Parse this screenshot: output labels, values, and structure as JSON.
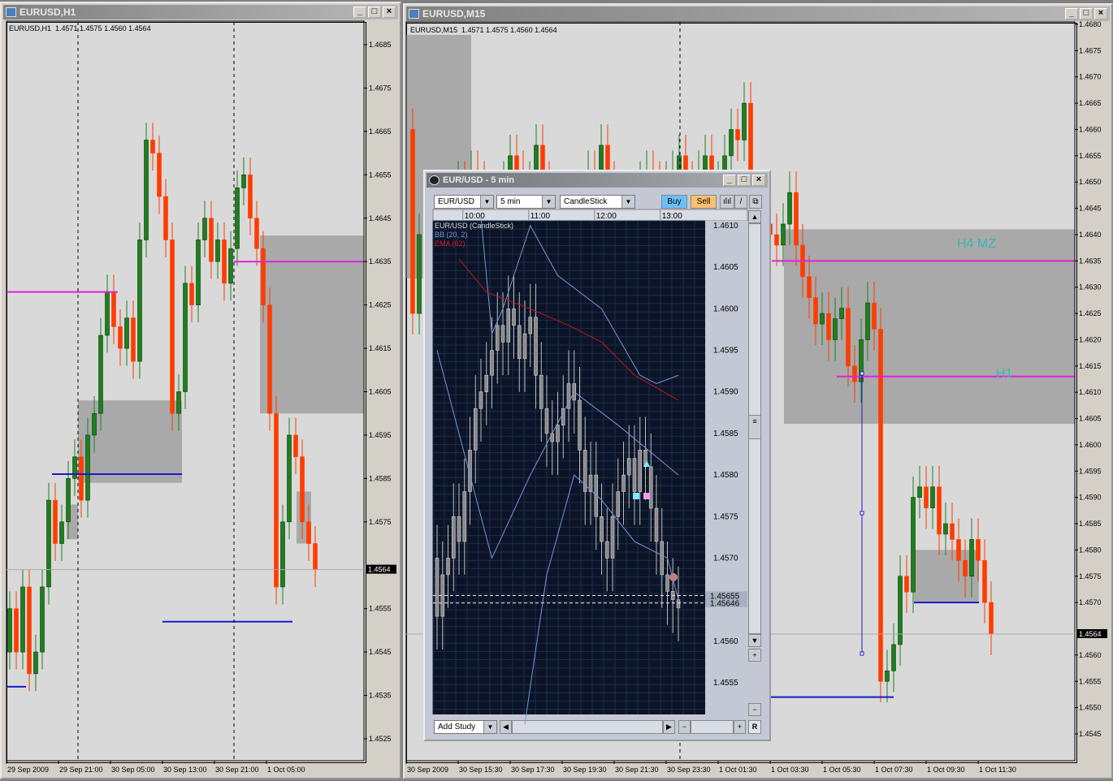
{
  "colors": {
    "bull": "#1e7f1e",
    "bear": "#ff3c00",
    "zone": "#a9a9a9",
    "magenta": "#e020e0",
    "blue": "#1a1acd",
    "label": "#3cb4b4",
    "mini_bg": "#0b1426",
    "mini_grid": "#1f2c48",
    "mini_candle": "#8a8a8a",
    "bb": "#7a96d8",
    "ema": "#c01818"
  },
  "h1": {
    "title": "EURUSD,H1",
    "header": "EURUSD,H1  1.4571 1.4575 1.4560 1.4564",
    "current_price": "1.4564",
    "window_buttons": [
      "_",
      "□",
      "×"
    ]
  },
  "m15": {
    "title": "EURUSD,M15",
    "header": "EURUSD,M15  1.4571 1.4575 1.4560 1.4564",
    "current_price": "1.4564",
    "labels": {
      "h4mz": "H4 MZ",
      "h1": "H1"
    }
  },
  "mini": {
    "title": "EUR/USD - 5 min",
    "symbol": "EUR/USD",
    "period": "5 min",
    "chart_type": "CandleStick",
    "buy": "Buy",
    "sell": "Sell",
    "legend": {
      "main": "EUR/USD (CandleStick)",
      "bb": "BB (20, 2)",
      "ema": "EMA (62)"
    },
    "price_markers": [
      "1.45655",
      "1.45646"
    ],
    "add_study": "Add Study",
    "reset": "R"
  },
  "chart_data": [
    {
      "type": "candlestick",
      "id": "h1",
      "yticks": [
        "1.4685",
        "1.4675",
        "1.4665",
        "1.4655",
        "1.4645",
        "1.4635",
        "1.4625",
        "1.4615",
        "1.4605",
        "1.4595",
        "1.4585",
        "1.4575",
        "1.4555",
        "1.4545",
        "1.4535",
        "1.4525"
      ],
      "xticks": [
        "29 Sep 2009",
        "29 Sep 21:00",
        "30 Sep 05:00",
        "30 Sep 13:00",
        "30 Sep 21:00",
        "1 Oct 05:00"
      ],
      "first_open": 1.4545,
      "close": [
        1.4555,
        1.4545,
        1.456,
        1.454,
        1.4545,
        1.456,
        1.458,
        1.457,
        1.4575,
        1.4585,
        1.459,
        1.458,
        1.4595,
        1.46,
        1.4618,
        1.4628,
        1.462,
        1.4615,
        1.4622,
        1.4612,
        1.464,
        1.4663,
        1.466,
        1.465,
        1.464,
        1.46,
        1.4605,
        1.463,
        1.4625,
        1.464,
        1.4645,
        1.4635,
        1.464,
        1.463,
        1.4638,
        1.4652,
        1.4655,
        1.4645,
        1.4638,
        1.4625,
        1.46,
        1.456,
        1.4575,
        1.4595,
        1.459,
        1.4575,
        1.457,
        1.4564
      ],
      "zones": [
        [
          1.4603,
          1.4584
        ],
        [
          1.4641,
          1.46
        ],
        [
          1.4579,
          1.4571
        ],
        [
          1.4582,
          1.457
        ]
      ],
      "levels": [
        {
          "price": 1.4628,
          "color": "magenta"
        },
        {
          "price": 1.4635,
          "color": "magenta"
        },
        {
          "price": 1.4586,
          "color": "blue"
        },
        {
          "price": 1.4552,
          "color": "blue"
        },
        {
          "price": 1.4537,
          "color": "blue"
        }
      ]
    },
    {
      "type": "candlestick",
      "id": "m15",
      "yticks": [
        "1.4680",
        "1.4675",
        "1.4670",
        "1.4665",
        "1.4660",
        "1.4655",
        "1.4650",
        "1.4645",
        "1.4640",
        "1.4635",
        "1.4630",
        "1.4625",
        "1.4620",
        "1.4615",
        "1.4610",
        "1.4605",
        "1.4600",
        "1.4595",
        "1.4590",
        "1.4585",
        "1.4580",
        "1.4575",
        "1.4570",
        "1.4560",
        "1.4555",
        "1.4550",
        "1.4545"
      ],
      "xticks": [
        "30 Sep 2009",
        "30 Sep 15:30",
        "30 Sep 17:30",
        "30 Sep 19:30",
        "30 Sep 21:30",
        "30 Sep 23:30",
        "1 Oct 01:30",
        "1 Oct 03:30",
        "1 Oct 05:30",
        "1 Oct 07:30",
        "1 Oct 09:30",
        "1 Oct 11:30"
      ],
      "first_open": 1.466,
      "close": [
        1.4625,
        1.464,
        1.4625,
        1.463,
        1.4635,
        1.464,
        1.4645,
        1.465,
        1.4648,
        1.4652,
        1.465,
        1.4645,
        1.464,
        1.4645,
        1.465,
        1.4655,
        1.4652,
        1.4648,
        1.465,
        1.4657,
        1.465,
        1.4645,
        1.464,
        1.4638,
        1.4642,
        1.4645,
        1.4648,
        1.4652,
        1.465,
        1.4657,
        1.465,
        1.4645,
        1.464,
        1.4645,
        1.4648,
        1.465,
        1.4652,
        1.465,
        1.4648,
        1.465,
        1.4652,
        1.4655,
        1.465,
        1.4648,
        1.4652,
        1.4655,
        1.465,
        1.465,
        1.4655,
        1.466,
        1.4658,
        1.4665,
        1.4648,
        1.4645,
        1.4642,
        1.464,
        1.4638,
        1.4642,
        1.4648,
        1.4638,
        1.4632,
        1.4628,
        1.4623,
        1.4625,
        1.462,
        1.4624,
        1.4626,
        1.4615,
        1.4612,
        1.462,
        1.4627,
        1.4622,
        1.4555,
        1.4557,
        1.4562,
        1.4575,
        1.4572,
        1.459,
        1.4592,
        1.4588,
        1.4592,
        1.4583,
        1.4585,
        1.4582,
        1.4578,
        1.4575,
        1.4582,
        1.4578,
        1.457,
        1.4564
      ],
      "zones": [
        [
          1.4641,
          1.4604
        ],
        [
          1.458,
          1.457
        ]
      ],
      "levels": [
        {
          "price": 1.4635,
          "color": "magenta"
        },
        {
          "price": 1.4613,
          "color": "magenta"
        },
        {
          "price": 1.4552,
          "color": "blue"
        },
        {
          "price": 1.457,
          "color": "blue"
        }
      ]
    },
    {
      "type": "candlestick",
      "id": "mini",
      "yticks": [
        "1.4610",
        "1.4605",
        "1.4600",
        "1.4595",
        "1.4590",
        "1.4585",
        "1.4580",
        "1.4575",
        "1.4570",
        "1.4560",
        "1.4555"
      ],
      "xticks": [
        "10:00",
        "11:00",
        "12:00",
        "13:00"
      ],
      "first_open": 1.457,
      "close": [
        1.4563,
        1.4568,
        1.457,
        1.4575,
        1.4572,
        1.4578,
        1.4583,
        1.4588,
        1.459,
        1.4592,
        1.4595,
        1.4598,
        1.4596,
        1.46,
        1.4598,
        1.4594,
        1.4597,
        1.4599,
        1.4592,
        1.4588,
        1.4585,
        1.4584,
        1.4586,
        1.4588,
        1.4591,
        1.4589,
        1.4583,
        1.4578,
        1.458,
        1.4575,
        1.4572,
        1.457,
        1.4575,
        1.4578,
        1.458,
        1.4582,
        1.4578,
        1.4583,
        1.4581,
        1.4576,
        1.4572,
        1.4568,
        1.4566,
        1.4565,
        1.4564
      ],
      "bb_upper": [
        [
          8,
          1.4611
        ],
        [
          10,
          1.4597
        ],
        [
          12,
          1.46
        ],
        [
          17,
          1.461
        ],
        [
          22,
          1.4604
        ],
        [
          30,
          1.46
        ],
        [
          37,
          1.4592
        ],
        [
          40,
          1.4591
        ],
        [
          44,
          1.4592
        ]
      ],
      "bb_middle": [
        [
          0,
          1.4595
        ],
        [
          6,
          1.458
        ],
        [
          10,
          1.457
        ],
        [
          17,
          1.458
        ],
        [
          25,
          1.459
        ],
        [
          33,
          1.4586
        ],
        [
          44,
          1.458
        ]
      ],
      "bb_lower": [
        [
          16,
          1.455
        ],
        [
          20,
          1.4568
        ],
        [
          25,
          1.458
        ],
        [
          30,
          1.4577
        ],
        [
          36,
          1.4572
        ],
        [
          42,
          1.457
        ],
        [
          44,
          1.4565
        ]
      ],
      "ema": [
        [
          4,
          1.4606
        ],
        [
          9,
          1.4602
        ],
        [
          17,
          1.46
        ],
        [
          24,
          1.4598
        ],
        [
          30,
          1.4596
        ],
        [
          36,
          1.4592
        ],
        [
          44,
          1.4589
        ]
      ]
    }
  ]
}
